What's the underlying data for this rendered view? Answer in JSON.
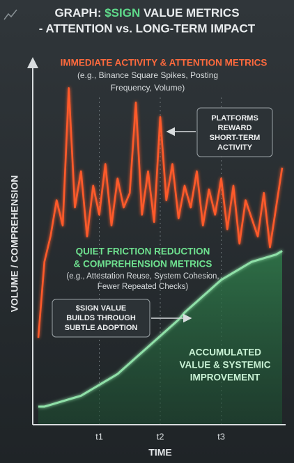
{
  "chart_data": {
    "type": "line",
    "title_prefix": "GRAPH: ",
    "title_highlight": "$SIGN",
    "title_suffix": " VALUE METRICS",
    "subtitle": "- ATTENTION vs. LONG-TERM IMPACT",
    "ylabel": "VOLUME / COMPREHENSION",
    "xlabel": "TIME",
    "x": [
      0,
      1,
      2,
      3,
      4,
      5,
      6,
      7,
      8,
      9,
      10,
      11,
      12,
      13,
      14,
      15,
      16,
      17,
      18,
      19,
      20,
      21,
      22,
      23,
      24,
      25,
      26,
      27,
      28,
      29,
      30,
      31,
      32,
      33,
      34,
      35,
      36,
      37,
      38,
      39,
      40
    ],
    "xlim": [
      0,
      40
    ],
    "xticks": [
      {
        "value": 10,
        "label": "t1"
      },
      {
        "value": 20,
        "label": "t2"
      },
      {
        "value": 30,
        "label": "t3"
      }
    ],
    "ylim": [
      0,
      100
    ],
    "series": [
      {
        "color": "#ff5a2c",
        "style": "line",
        "values": [
          24,
          45,
          52,
          62,
          55,
          93,
          60,
          70,
          52,
          66,
          58,
          72,
          55,
          68,
          60,
          64,
          89,
          58,
          70,
          56,
          85,
          62,
          72,
          57,
          66,
          60,
          70,
          55,
          65,
          58,
          68,
          54,
          66,
          50,
          62,
          57,
          52,
          64,
          49,
          60,
          71
        ]
      },
      {
        "color": "#8fe0a8",
        "style": "area",
        "values": [
          5,
          5,
          5.5,
          6,
          6.5,
          7,
          7.5,
          8,
          9,
          10,
          11,
          12,
          13,
          14,
          15.5,
          17,
          18.5,
          20,
          21.5,
          23,
          24.5,
          26,
          27.5,
          29,
          31,
          32.5,
          34,
          35.5,
          37,
          38.5,
          40,
          41,
          42,
          43,
          44,
          45,
          45.5,
          46,
          46.5,
          47,
          48
        ]
      }
    ],
    "annotations": {
      "attention_heading": "IMMEDIATE ACTIVITY & ATTENTION METRICS",
      "attention_examples": [
        "(e.g., Binance Square Spikes, Posting",
        "Frequency, Volume)"
      ],
      "platforms_box": [
        "PLATFORMS",
        "REWARD",
        "SHORT-TERM",
        "ACTIVITY"
      ],
      "friction_heading": [
        "QUIET FRICTION REDUCTION",
        "& COMPREHENSION METRICS"
      ],
      "friction_examples": [
        "(e.g., Attestation Reuse, System Cohesion,",
        "Fewer Repeated Checks)"
      ],
      "sign_box": [
        "$SIGN VALUE",
        "BUILDS THROUGH",
        "SUBTLE ADOPTION"
      ],
      "accumulated": [
        "ACCUMULATED",
        "VALUE & SYSTEMIC",
        "IMPROVEMENT"
      ]
    }
  }
}
